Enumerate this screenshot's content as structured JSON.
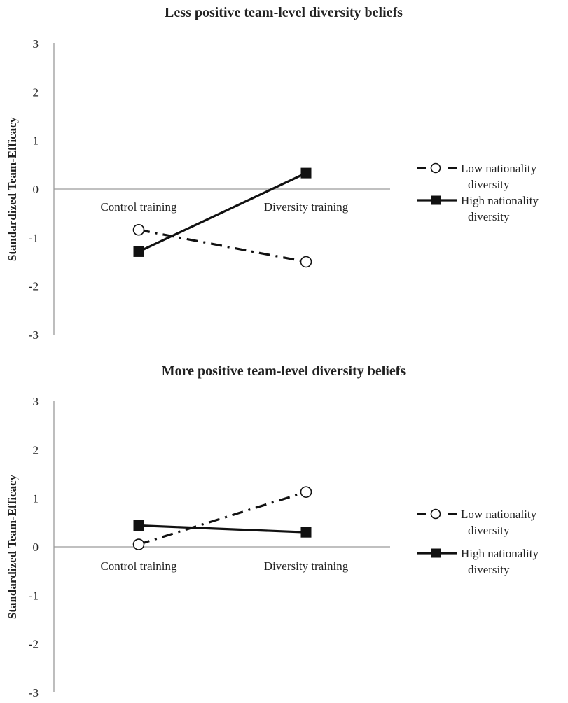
{
  "chart_data": [
    {
      "type": "line",
      "title": "Less positive team-level diversity beliefs",
      "ylabel": "Standardized Team-Efficacy",
      "xlabel": "",
      "ylim": [
        -3,
        3
      ],
      "yticks": [
        "3",
        "2",
        "1",
        "0",
        "-1",
        "-2",
        "-3"
      ],
      "categories": [
        "Control training",
        "Diversity training"
      ],
      "grid": false,
      "legend_position": "right",
      "series": [
        {
          "name": "Low nationality diversity",
          "legend_lines": [
            "Low nationality",
            "diversity"
          ],
          "style": "dash-dot",
          "marker": "open-circle",
          "values": [
            -0.84,
            -1.5
          ]
        },
        {
          "name": "High nationality diversity",
          "legend_lines": [
            "High nationality",
            "diversity"
          ],
          "style": "solid",
          "marker": "filled-square",
          "values": [
            -1.29,
            0.33
          ]
        }
      ]
    },
    {
      "type": "line",
      "title": "More positive team-level diversity beliefs",
      "ylabel": "Standardized Team-Efficacy",
      "xlabel": "",
      "ylim": [
        -3,
        3
      ],
      "yticks": [
        "3",
        "2",
        "1",
        "0",
        "-1",
        "-2",
        "-3"
      ],
      "categories": [
        "Control training",
        "Diversity training"
      ],
      "grid": false,
      "legend_position": "right",
      "series": [
        {
          "name": "Low nationality diversity",
          "legend_lines": [
            "Low nationality",
            "diversity"
          ],
          "style": "dash-dot",
          "marker": "open-circle",
          "values": [
            0.05,
            1.13
          ]
        },
        {
          "name": "High nationality diversity",
          "legend_lines": [
            "High nationality",
            "diversity"
          ],
          "style": "solid",
          "marker": "filled-square",
          "values": [
            0.44,
            0.3
          ]
        }
      ]
    }
  ]
}
